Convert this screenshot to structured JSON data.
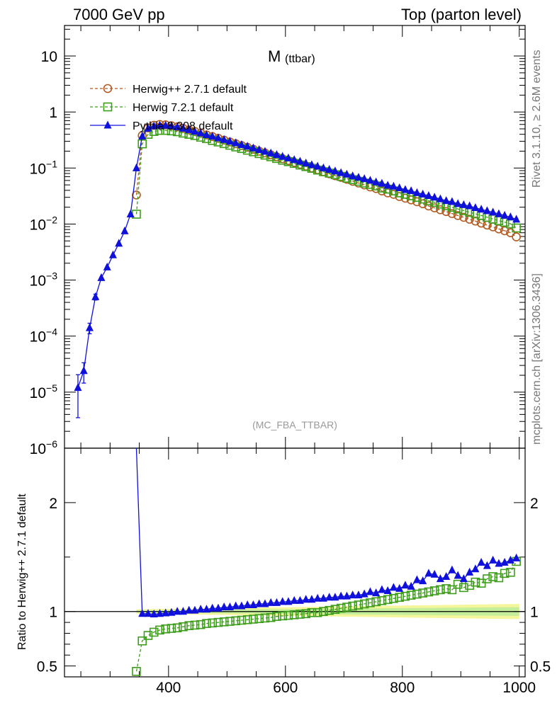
{
  "header": {
    "left": "7000 GeV pp",
    "right": "Top (parton level)"
  },
  "side_labels": {
    "rivet": "Rivet 3.1.10, ≥ 2.6M events",
    "mcplots": "mcplots.cern.ch [arXiv:1306.3436]"
  },
  "chart_data": [
    {
      "type": "line",
      "title_main": "M",
      "title_sub": "(ttbar)",
      "watermark": "(MC_FBA_TTBAR)",
      "yscale": "log",
      "xlim": [
        222,
        1010
      ],
      "ylim": [
        1e-06,
        35
      ],
      "y_ticks": [
        {
          "base": "10",
          "exp": "",
          "value": 10
        },
        {
          "base": "1",
          "exp": "",
          "value": 1
        },
        {
          "base": "10",
          "exp": "−1",
          "value": 0.1
        },
        {
          "base": "10",
          "exp": "−2",
          "value": 0.01
        },
        {
          "base": "10",
          "exp": "−3",
          "value": 0.001
        },
        {
          "base": "10",
          "exp": "−4",
          "value": 0.0001
        },
        {
          "base": "10",
          "exp": "−5",
          "value": 1e-05
        },
        {
          "base": "10",
          "exp": "−6",
          "value": 1e-06
        }
      ],
      "legend_position": "top-left",
      "series": [
        {
          "name": "Herwig++ 2.7.1 default",
          "color": "#b35a1f",
          "marker": "open-circle",
          "dashed": true,
          "x": [
            345,
            355,
            365,
            375,
            385,
            395,
            405,
            415,
            425,
            435,
            445,
            455,
            465,
            475,
            485,
            495,
            505,
            515,
            525,
            535,
            545,
            555,
            565,
            575,
            585,
            595,
            605,
            615,
            625,
            635,
            645,
            655,
            665,
            675,
            685,
            695,
            705,
            715,
            725,
            735,
            745,
            755,
            765,
            775,
            785,
            795,
            805,
            815,
            825,
            835,
            845,
            855,
            865,
            875,
            885,
            895,
            905,
            915,
            925,
            935,
            945,
            955,
            965,
            975,
            985,
            995
          ],
          "y": [
            0.033,
            0.38,
            0.52,
            0.58,
            0.6,
            0.59,
            0.57,
            0.545,
            0.51,
            0.48,
            0.45,
            0.42,
            0.39,
            0.365,
            0.34,
            0.315,
            0.292,
            0.272,
            0.252,
            0.234,
            0.216,
            0.2,
            0.186,
            0.172,
            0.159,
            0.147,
            0.136,
            0.126,
            0.117,
            0.108,
            0.1,
            0.093,
            0.086,
            0.079,
            0.073,
            0.068,
            0.063,
            0.058,
            0.054,
            0.05,
            0.046,
            0.043,
            0.039,
            0.036,
            0.034,
            0.031,
            0.029,
            0.027,
            0.025,
            0.023,
            0.021,
            0.0195,
            0.018,
            0.0167,
            0.0154,
            0.0142,
            0.0132,
            0.0122,
            0.0113,
            0.0104,
            0.0096,
            0.0089,
            0.0082,
            0.0076,
            0.007,
            0.0059
          ]
        },
        {
          "name": "Herwig 7.2.1 default",
          "color": "#3e9e1c",
          "marker": "open-square",
          "dashed": true,
          "x": [
            345,
            355,
            365,
            375,
            385,
            395,
            405,
            415,
            425,
            435,
            445,
            455,
            465,
            475,
            485,
            495,
            505,
            515,
            525,
            535,
            545,
            555,
            565,
            575,
            585,
            595,
            605,
            615,
            625,
            635,
            645,
            655,
            665,
            675,
            685,
            695,
            705,
            715,
            725,
            735,
            745,
            755,
            765,
            775,
            785,
            795,
            805,
            815,
            825,
            835,
            845,
            855,
            865,
            875,
            885,
            895,
            905,
            915,
            925,
            935,
            945,
            955,
            965,
            975,
            985,
            995
          ],
          "y": [
            0.015,
            0.27,
            0.4,
            0.45,
            0.47,
            0.47,
            0.46,
            0.445,
            0.42,
            0.4,
            0.38,
            0.355,
            0.335,
            0.31,
            0.292,
            0.273,
            0.255,
            0.238,
            0.223,
            0.208,
            0.195,
            0.181,
            0.17,
            0.159,
            0.148,
            0.138,
            0.13,
            0.121,
            0.113,
            0.106,
            0.099,
            0.092,
            0.086,
            0.081,
            0.076,
            0.071,
            0.066,
            0.062,
            0.058,
            0.054,
            0.051,
            0.048,
            0.044,
            0.042,
            0.039,
            0.036,
            0.034,
            0.032,
            0.03,
            0.028,
            0.026,
            0.0245,
            0.0228,
            0.0213,
            0.0199,
            0.0186,
            0.0174,
            0.0162,
            0.0152,
            0.0142,
            0.0132,
            0.0123,
            0.0115,
            0.0108,
            0.0101,
            0.0085
          ]
        },
        {
          "name": "Pythia 8.308 default",
          "color": "#1010dd",
          "marker": "filled-triangle",
          "dashed": false,
          "x": [
            245,
            255,
            265,
            275,
            285,
            295,
            305,
            315,
            325,
            335,
            345,
            355,
            365,
            375,
            385,
            395,
            405,
            415,
            425,
            435,
            445,
            455,
            465,
            475,
            485,
            495,
            505,
            515,
            525,
            535,
            545,
            555,
            565,
            575,
            585,
            595,
            605,
            615,
            625,
            635,
            645,
            655,
            665,
            675,
            685,
            695,
            705,
            715,
            725,
            735,
            745,
            755,
            765,
            775,
            785,
            795,
            805,
            815,
            825,
            835,
            845,
            855,
            865,
            875,
            885,
            895,
            905,
            915,
            925,
            935,
            945,
            955,
            965,
            975,
            985,
            995
          ],
          "y": [
            1.2e-05,
            2.4e-05,
            0.00014,
            0.0005,
            0.0011,
            0.0017,
            0.0028,
            0.0045,
            0.0075,
            0.015,
            0.1,
            0.37,
            0.51,
            0.56,
            0.58,
            0.575,
            0.56,
            0.54,
            0.51,
            0.48,
            0.45,
            0.42,
            0.39,
            0.367,
            0.343,
            0.32,
            0.298,
            0.279,
            0.26,
            0.243,
            0.226,
            0.211,
            0.197,
            0.184,
            0.172,
            0.16,
            0.15,
            0.14,
            0.131,
            0.122,
            0.114,
            0.107,
            0.1,
            0.094,
            0.088,
            0.082,
            0.077,
            0.072,
            0.068,
            0.064,
            0.06,
            0.056,
            0.053,
            0.049,
            0.047,
            0.044,
            0.041,
            0.039,
            0.036,
            0.034,
            0.032,
            0.03,
            0.028,
            0.026,
            0.025,
            0.023,
            0.022,
            0.021,
            0.0195,
            0.0183,
            0.0172,
            0.0162,
            0.0152,
            0.0142,
            0.0133,
            0.0121
          ],
          "yerr": [
            8.5e-06,
            9.5e-06,
            3e-05,
            6e-05,
            0,
            0,
            0,
            0,
            0,
            0,
            0,
            0,
            0,
            0,
            0,
            0,
            0,
            0,
            0,
            0,
            0,
            0,
            0,
            0,
            0,
            0,
            0,
            0,
            0,
            0,
            0,
            0,
            0,
            0,
            0,
            0,
            0,
            0,
            0,
            0,
            0,
            0,
            0,
            0,
            0,
            0,
            0,
            0,
            0,
            0,
            0,
            0,
            0,
            0,
            0,
            0,
            0,
            0,
            0,
            0,
            0,
            0,
            0,
            0,
            0,
            0,
            0,
            0,
            0,
            0,
            0,
            0,
            0,
            0,
            0,
            0
          ]
        }
      ]
    },
    {
      "type": "line",
      "ylabel": "Ratio to Herwig++ 2.7.1 default",
      "xlim": [
        222,
        1010
      ],
      "ylim": [
        0.4,
        2.5
      ],
      "x_ticks": [
        400,
        600,
        800,
        1000
      ],
      "y_ticks": [
        {
          "label": "2",
          "value": 2
        },
        {
          "label": "1",
          "value": 1
        },
        {
          "label": "0.5",
          "value": 0.5
        }
      ],
      "reference_line": 1,
      "series": [
        {
          "name": "Herwig 7.2.1 default",
          "color": "#3e9e1c",
          "marker": "open-square",
          "dashed": true,
          "x": [
            345,
            355,
            365,
            375,
            385,
            395,
            405,
            415,
            425,
            435,
            445,
            455,
            465,
            475,
            485,
            495,
            505,
            515,
            525,
            535,
            545,
            555,
            565,
            575,
            585,
            595,
            605,
            615,
            625,
            635,
            645,
            655,
            665,
            675,
            685,
            695,
            705,
            715,
            725,
            735,
            745,
            755,
            765,
            775,
            785,
            795,
            805,
            815,
            825,
            835,
            845,
            855,
            865,
            875,
            885,
            895,
            905,
            915,
            925,
            935,
            945,
            955,
            965,
            975,
            985,
            995
          ],
          "y": [
            0.45,
            0.73,
            0.78,
            0.81,
            0.83,
            0.84,
            0.845,
            0.85,
            0.86,
            0.87,
            0.875,
            0.88,
            0.89,
            0.895,
            0.9,
            0.905,
            0.91,
            0.915,
            0.92,
            0.925,
            0.93,
            0.935,
            0.94,
            0.945,
            0.955,
            0.96,
            0.965,
            0.97,
            0.975,
            0.98,
            0.99,
            0.99,
            1.0,
            1.01,
            1.02,
            1.03,
            1.04,
            1.05,
            1.06,
            1.07,
            1.08,
            1.09,
            1.1,
            1.11,
            1.12,
            1.13,
            1.14,
            1.15,
            1.16,
            1.17,
            1.18,
            1.19,
            1.2,
            1.21,
            1.2,
            1.25,
            1.22,
            1.24,
            1.27,
            1.26,
            1.3,
            1.32,
            1.31,
            1.35,
            1.36,
            1.46
          ]
        },
        {
          "name": "Pythia 8.308 default",
          "color": "#1010dd",
          "marker": "filled-triangle",
          "dashed": false,
          "x": [
            355,
            365,
            375,
            385,
            395,
            405,
            415,
            425,
            435,
            445,
            455,
            465,
            475,
            485,
            495,
            505,
            515,
            525,
            535,
            545,
            555,
            565,
            575,
            585,
            595,
            605,
            615,
            625,
            635,
            645,
            655,
            665,
            675,
            685,
            695,
            705,
            715,
            725,
            735,
            745,
            755,
            765,
            775,
            785,
            795,
            805,
            815,
            825,
            835,
            845,
            855,
            865,
            875,
            885,
            895,
            905,
            915,
            925,
            935,
            945,
            955,
            965,
            975,
            985,
            995
          ],
          "y": [
            0.98,
            0.98,
            0.975,
            0.98,
            0.985,
            0.99,
            1.0,
            1.0,
            1.01,
            1.01,
            1.02,
            1.02,
            1.03,
            1.03,
            1.04,
            1.04,
            1.05,
            1.05,
            1.06,
            1.06,
            1.07,
            1.07,
            1.08,
            1.08,
            1.09,
            1.09,
            1.1,
            1.1,
            1.11,
            1.11,
            1.12,
            1.12,
            1.13,
            1.13,
            1.14,
            1.14,
            1.15,
            1.15,
            1.16,
            1.18,
            1.17,
            1.2,
            1.19,
            1.22,
            1.21,
            1.24,
            1.23,
            1.29,
            1.28,
            1.35,
            1.34,
            1.3,
            1.32,
            1.38,
            1.33,
            1.3,
            1.36,
            1.39,
            1.45,
            1.42,
            1.47,
            1.44,
            1.45,
            1.47,
            1.49
          ]
        }
      ]
    }
  ]
}
